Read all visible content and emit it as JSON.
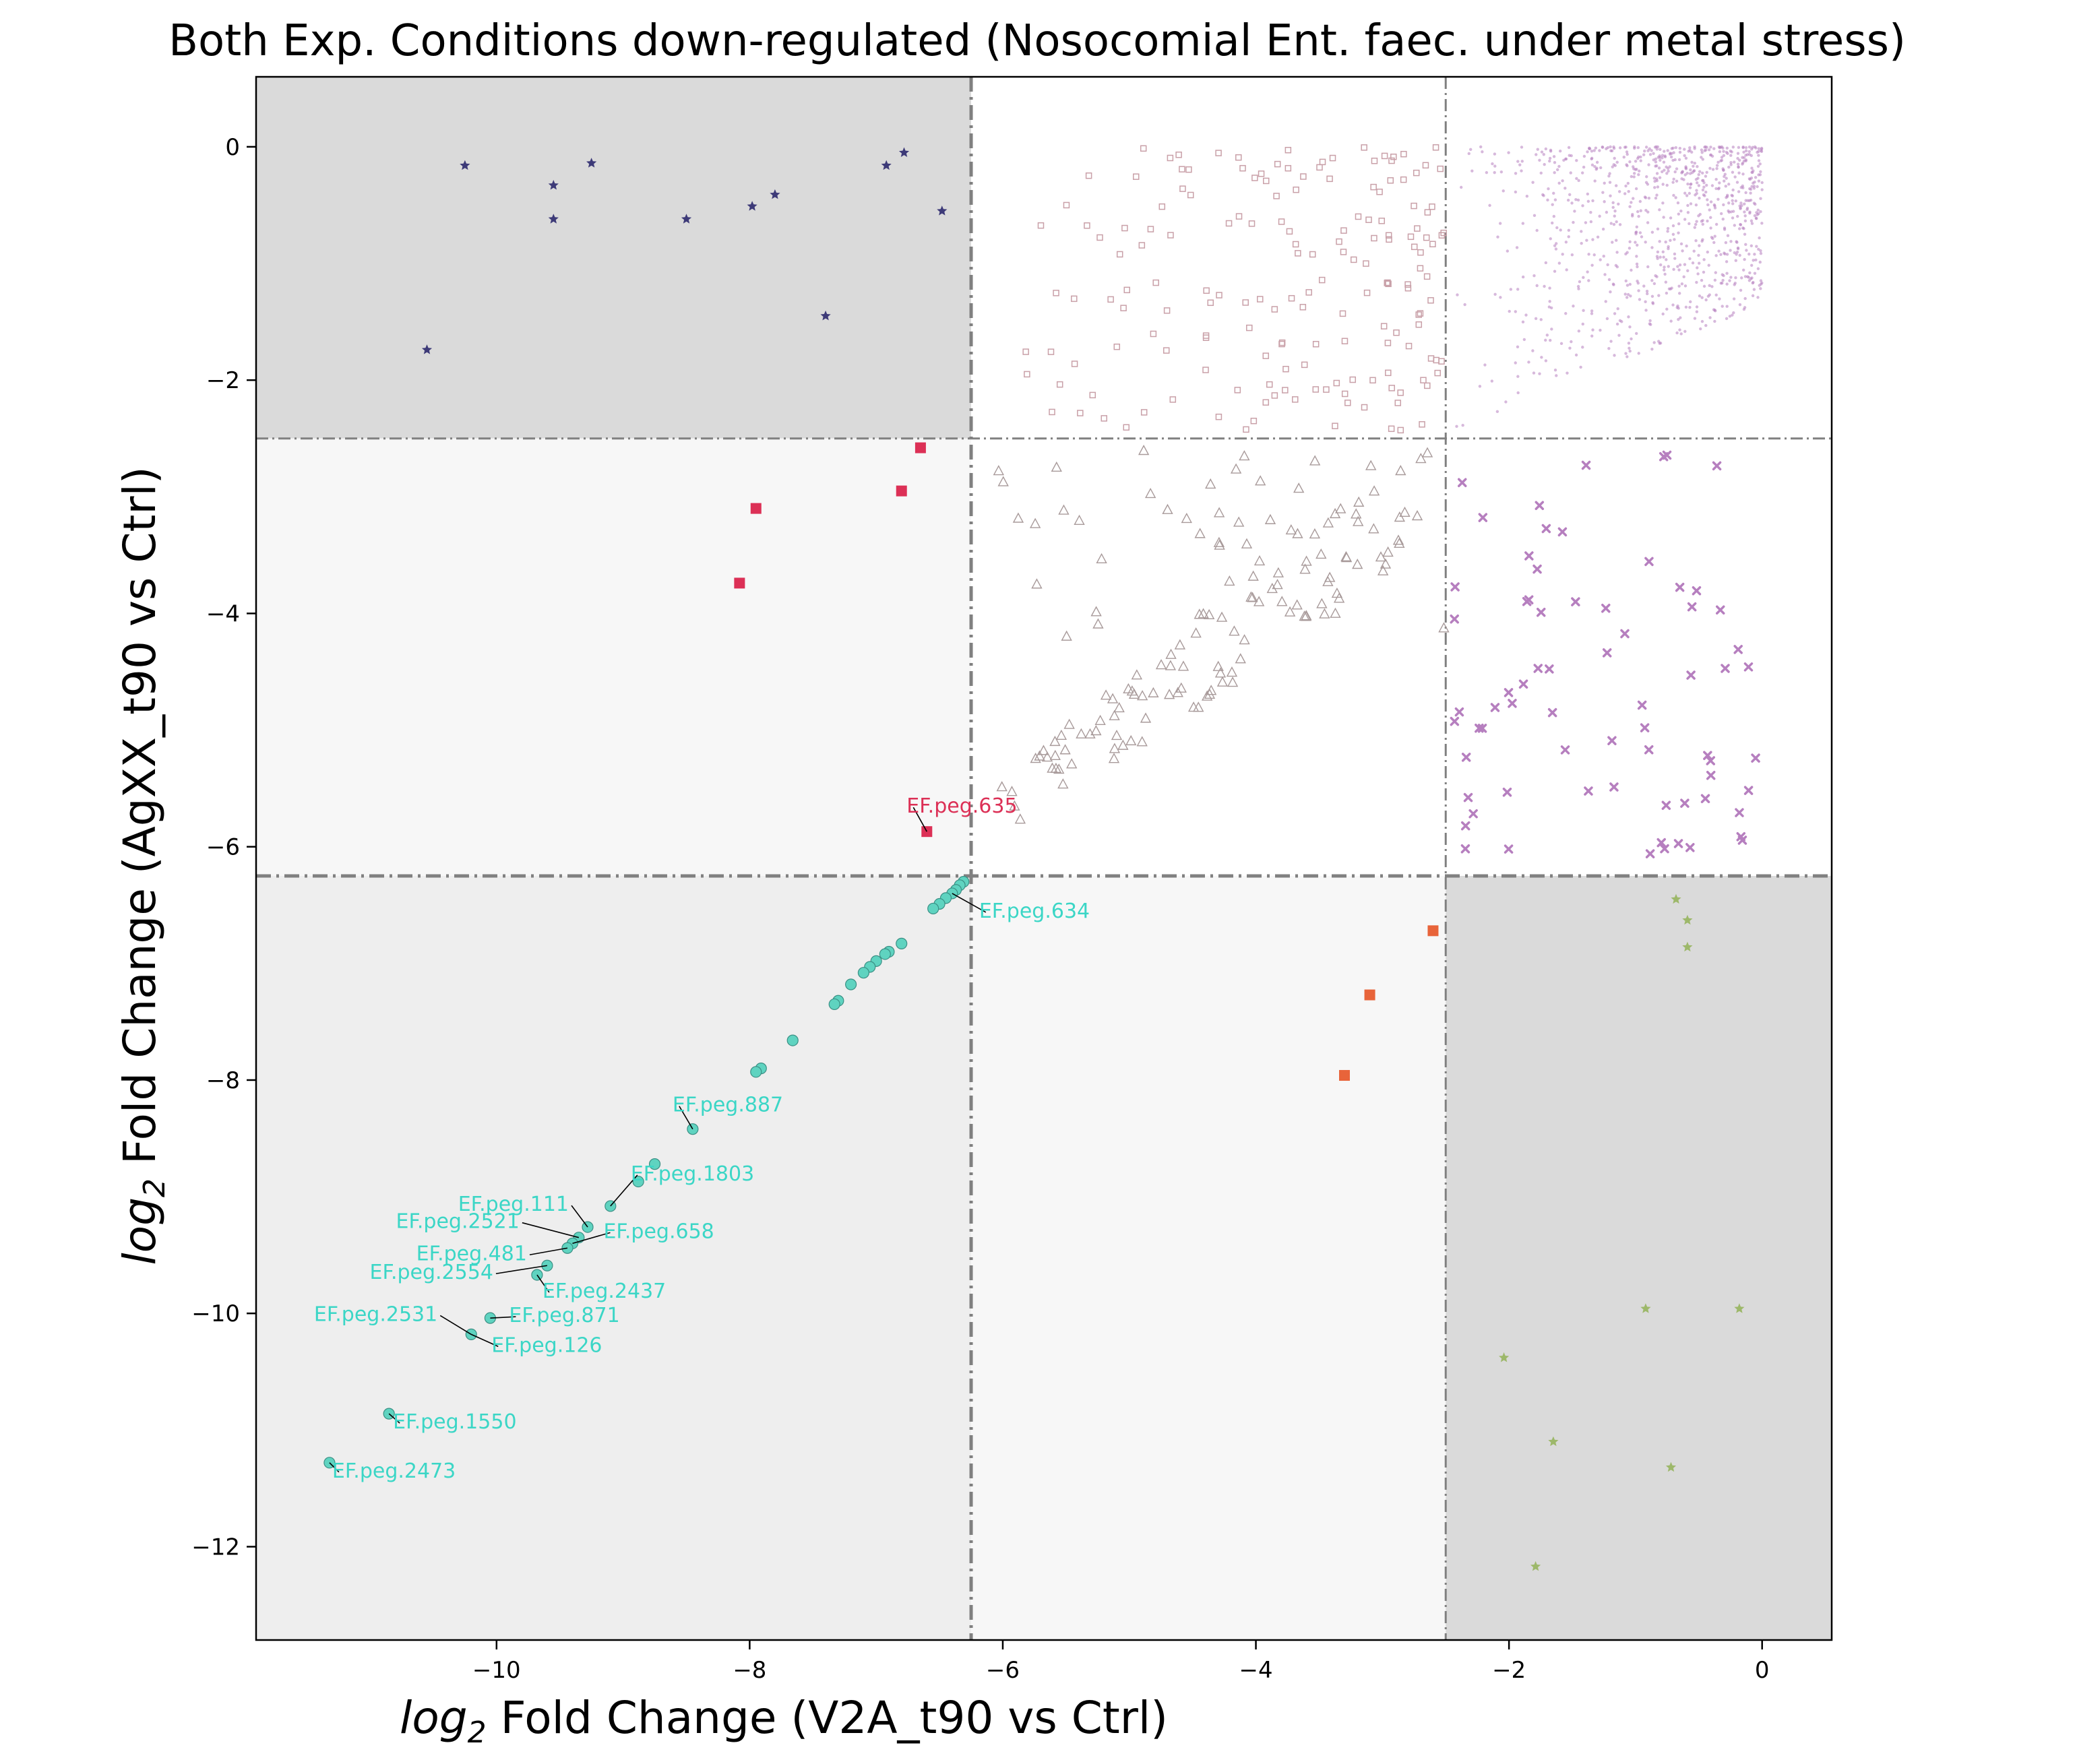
{
  "chart_data": {
    "type": "scatter",
    "title": "Both Exp. Conditions down-regulated (Nosocomial Ent. faec. under metal stress)",
    "xlabel": {
      "prefix": "log",
      "sub": "2",
      "rest": " Fold Change (V2A_t90 vs Ctrl)"
    },
    "ylabel": {
      "prefix": "log",
      "sub": "2",
      "rest": " Fold Change (AgXX_t90 vs Ctrl)"
    },
    "xlim": [
      -11.9,
      0.55
    ],
    "ylim": [
      -12.8,
      0.6
    ],
    "xticks": [
      -10,
      -8,
      -6,
      -4,
      -2,
      0
    ],
    "yticks": [
      -12,
      -10,
      -8,
      -6,
      -4,
      -2,
      0
    ],
    "xtick_labels": [
      "−10",
      "−8",
      "−6",
      "−4",
      "−2",
      "0"
    ],
    "ytick_labels": [
      "−12",
      "−10",
      "−8",
      "−6",
      "−4",
      "−2",
      "0"
    ],
    "thresholds": {
      "x": [
        -6.25,
        -2.5
      ],
      "y": [
        -2.5,
        -6.25
      ]
    },
    "colors": {
      "dark_shade": "#dadada",
      "mid_shade": "#eeeeee",
      "light_shade": "#f7f7f7",
      "threshold_line": "#808080",
      "both_down": "#5fd3c0",
      "both_down_label": "#3bd6c6",
      "agxx_only": "#dc3056",
      "v2a_only": "#e8643a",
      "agxx_down_v2a_mild": "#3d3a78",
      "v2a_down_agxx_mild": "#9db86a",
      "mild_region_purple": "#b67fbf",
      "triangle_outline": "#a89a9a",
      "square_outline": "#c9a0a8"
    },
    "series": [
      {
        "marker": "circle",
        "x": [
          -6.31,
          -6.34,
          -6.37,
          -6.4,
          -6.45,
          -6.5,
          -6.55,
          -6.8,
          -6.9,
          -6.93,
          -7.0,
          -7.05,
          -7.1,
          -7.2,
          -7.3,
          -7.33,
          -7.66,
          -7.91,
          -7.95,
          -8.45,
          -8.75,
          -8.88,
          -9.1,
          -9.28,
          -9.35,
          -9.4,
          -9.44,
          -9.6,
          -9.68,
          -10.05,
          -10.2,
          -10.85,
          -11.32
        ],
        "y": [
          -6.3,
          -6.33,
          -6.37,
          -6.4,
          -6.44,
          -6.49,
          -6.53,
          -6.83,
          -6.9,
          -6.92,
          -6.98,
          -7.03,
          -7.08,
          -7.18,
          -7.32,
          -7.35,
          -7.66,
          -7.9,
          -7.93,
          -8.42,
          -8.72,
          -8.87,
          -9.08,
          -9.26,
          -9.35,
          -9.4,
          -9.44,
          -9.59,
          -9.67,
          -10.04,
          -10.18,
          -10.86,
          -11.28
        ]
      },
      {
        "marker": "square",
        "x": [
          -6.6,
          -6.65,
          -6.8,
          -7.95,
          -8.08
        ],
        "y": [
          -5.87,
          -2.58,
          -2.95,
          -3.1,
          -3.74
        ]
      },
      {
        "marker": "square",
        "x": [
          -2.6,
          -3.1,
          -3.3
        ],
        "y": [
          -6.72,
          -7.27,
          -7.96
        ]
      },
      {
        "marker": "star",
        "x": [
          -10.25,
          -9.55,
          -9.25,
          -9.55,
          -8.5,
          -7.98,
          -7.8,
          -6.92,
          -6.78,
          -6.48,
          -7.4,
          -10.55
        ],
        "y": [
          -0.16,
          -0.33,
          -0.14,
          -0.62,
          -0.62,
          -0.51,
          -0.41,
          -0.16,
          -0.05,
          -0.55,
          -1.45,
          -1.74
        ]
      },
      {
        "marker": "star",
        "x": [
          -0.68,
          -0.59,
          -0.59,
          -0.92,
          -0.18,
          -2.04,
          -1.65,
          -0.72,
          -1.79
        ],
        "y": [
          -6.45,
          -6.63,
          -6.86,
          -9.96,
          -9.96,
          -10.38,
          -11.1,
          -11.32,
          -12.17
        ]
      }
    ],
    "annotations": [
      {
        "text": "EF.peg.635",
        "x": -6.6,
        "y": -5.87,
        "color_key": "agxx_only"
      },
      {
        "text": "EF.peg.634",
        "x": -6.4,
        "y": -6.4,
        "color_key": "both_down_label"
      },
      {
        "text": "EF.peg.887",
        "x": -8.45,
        "y": -8.42,
        "color_key": "both_down_label"
      },
      {
        "text": "EF.peg.1803",
        "x": -9.1,
        "y": -9.08,
        "color_key": "both_down_label"
      },
      {
        "text": "EF.peg.111",
        "x": -9.28,
        "y": -9.26,
        "color_key": "both_down_label"
      },
      {
        "text": "EF.peg.2521",
        "x": -9.35,
        "y": -9.35,
        "color_key": "both_down_label"
      },
      {
        "text": "EF.peg.658",
        "x": -9.4,
        "y": -9.4,
        "color_key": "both_down_label"
      },
      {
        "text": "EF.peg.481",
        "x": -9.44,
        "y": -9.44,
        "color_key": "both_down_label"
      },
      {
        "text": "EF.peg.2554",
        "x": -9.6,
        "y": -9.59,
        "color_key": "both_down_label"
      },
      {
        "text": "EF.peg.2437",
        "x": -9.68,
        "y": -9.67,
        "color_key": "both_down_label"
      },
      {
        "text": "EF.peg.2531",
        "x": -10.2,
        "y": -10.18,
        "color_key": "both_down_label"
      },
      {
        "text": "EF.peg.871",
        "x": -10.05,
        "y": -10.04,
        "color_key": "both_down_label"
      },
      {
        "text": "EF.peg.126",
        "x": -10.2,
        "y": -10.18,
        "color_key": "both_down_label"
      },
      {
        "text": "EF.peg.1550",
        "x": -10.85,
        "y": -10.86,
        "color_key": "both_down_label"
      },
      {
        "text": "EF.peg.2473",
        "x": -11.32,
        "y": -11.28,
        "color_key": "both_down_label"
      }
    ],
    "grid": false,
    "legend": "none"
  }
}
